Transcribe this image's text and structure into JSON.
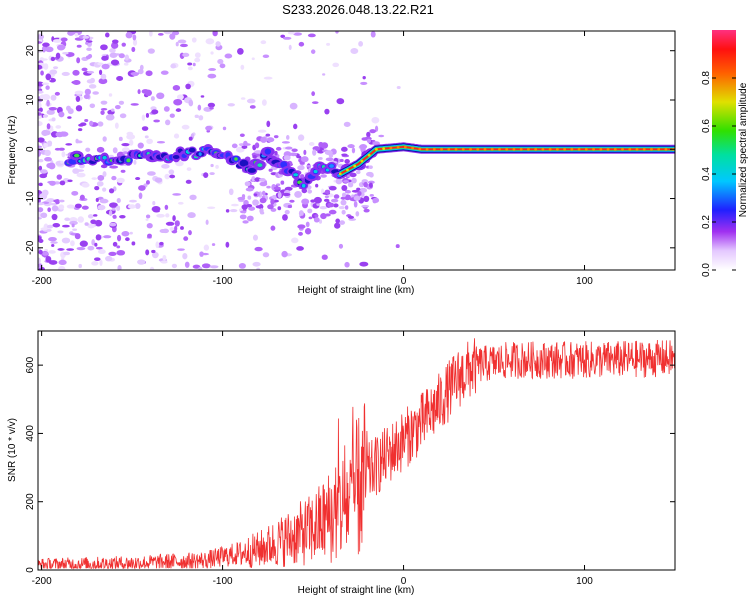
{
  "title": "S233.2026.048.13.22.R21",
  "chart_data": [
    {
      "type": "heatmap",
      "xlabel": "Height of straight line (km)",
      "ylabel": "Frequency (Hz)",
      "xlim": [
        -202,
        150
      ],
      "ylim": [
        -24.5,
        24
      ],
      "xticks": [
        -200,
        -100,
        0,
        100
      ],
      "yticks": [
        -20,
        -10,
        0,
        10,
        20
      ],
      "colorbar": {
        "label": "Normalized spectral amplitude",
        "range": [
          0,
          1
        ],
        "ticks": [
          0.0,
          0.2,
          0.4,
          0.6,
          0.8
        ]
      },
      "ridge": [
        {
          "x": -180,
          "y": -2.0
        },
        {
          "x": -160,
          "y": -2.0
        },
        {
          "x": -140,
          "y": -1.5
        },
        {
          "x": -120,
          "y": -1.0
        },
        {
          "x": -105,
          "y": -0.5
        },
        {
          "x": -95,
          "y": -1.5
        },
        {
          "x": -85,
          "y": -4.5
        },
        {
          "x": -75,
          "y": -1.0
        },
        {
          "x": -65,
          "y": -3.5
        },
        {
          "x": -55,
          "y": -7.0
        },
        {
          "x": -45,
          "y": -3.0
        },
        {
          "x": -35,
          "y": -5.0
        },
        {
          "x": -25,
          "y": -3.0
        },
        {
          "x": -15,
          "y": 0.0
        },
        {
          "x": 0,
          "y": 0.5
        },
        {
          "x": 10,
          "y": 0.0
        },
        {
          "x": 150,
          "y": 0.0
        }
      ]
    },
    {
      "type": "line",
      "xlabel": "Height of straight line (km)",
      "ylabel": "SNR (10 * v/v)",
      "xlim": [
        -202,
        150
      ],
      "ylim": [
        0,
        700
      ],
      "xticks": [
        -200,
        -100,
        0,
        100
      ],
      "yticks": [
        0,
        200,
        400,
        600
      ],
      "series": [
        {
          "name": "SNR",
          "color": "#f03030",
          "trend": [
            {
              "x": -202,
              "y": 15
            },
            {
              "x": -150,
              "y": 20
            },
            {
              "x": -110,
              "y": 28
            },
            {
              "x": -80,
              "y": 60
            },
            {
              "x": -50,
              "y": 120
            },
            {
              "x": -30,
              "y": 200
            },
            {
              "x": -20,
              "y": 280
            },
            {
              "x": -10,
              "y": 330
            },
            {
              "x": 0,
              "y": 380
            },
            {
              "x": 10,
              "y": 430
            },
            {
              "x": 20,
              "y": 490
            },
            {
              "x": 30,
              "y": 560
            },
            {
              "x": 40,
              "y": 600
            },
            {
              "x": 60,
              "y": 615
            },
            {
              "x": 100,
              "y": 615
            },
            {
              "x": 150,
              "y": 620
            }
          ]
        }
      ]
    }
  ]
}
